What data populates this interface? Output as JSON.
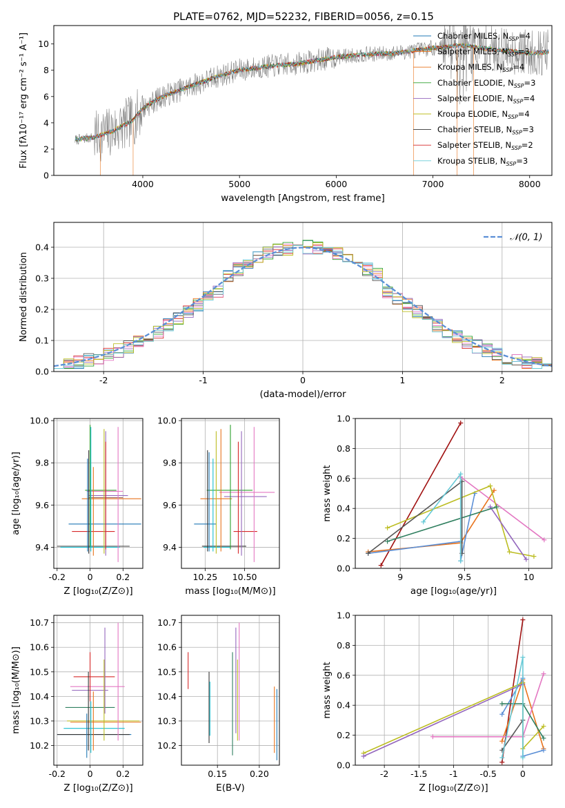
{
  "figure_title": "PLATE=0762, MJD=52232, FIBERID=0056, z=0.15",
  "colors": {
    "spectrum_data": "#808080",
    "normal_curve": "#5b8fd6",
    "grid": "#b0b0b0",
    "models": [
      "#1f77b4",
      "#e8731c",
      "#2ca02c",
      "#d62728",
      "#9467bd",
      "#8c564b",
      "#e377c2",
      "#bcbd22",
      "#17becf"
    ]
  },
  "chart_data": [
    {
      "id": "spectrum",
      "type": "line",
      "title": "PLATE=0762, MJD=52232, FIBERID=0056, z=0.15",
      "xlabel": "wavelength [Angstrom, rest frame]",
      "ylabel": "Flux [fλ10⁻¹⁷ erg cm⁻² s⁻¹ A⁻¹]",
      "xlim": [
        3080,
        8230
      ],
      "ylim": [
        0,
        11.4
      ],
      "xticks": [
        4000,
        5000,
        6000,
        7000,
        8000
      ],
      "yticks": [
        0,
        2,
        4,
        6,
        8,
        10
      ],
      "grid": false,
      "legend_position": "top-right",
      "continuum_anchor_points": [
        [
          3300,
          2.7
        ],
        [
          3500,
          2.9
        ],
        [
          3700,
          3.4
        ],
        [
          3900,
          4.2
        ],
        [
          4000,
          5.1
        ],
        [
          4200,
          6.0
        ],
        [
          4500,
          6.8
        ],
        [
          4800,
          7.6
        ],
        [
          5000,
          8.0
        ],
        [
          5300,
          8.3
        ],
        [
          5600,
          8.5
        ],
        [
          6000,
          9.0
        ],
        [
          6300,
          9.2
        ],
        [
          6600,
          9.3
        ],
        [
          7000,
          9.7
        ],
        [
          7300,
          9.9
        ],
        [
          7600,
          9.6
        ],
        [
          8000,
          9.3
        ],
        [
          8200,
          9.4
        ]
      ],
      "series": [
        {
          "name": "Chabrier MILES, N_SSP=4"
        },
        {
          "name": "Salpeter MILES, N_SSP=3"
        },
        {
          "name": "Kroupa MILES, N_SSP=4"
        },
        {
          "name": "Chabrier ELODIE, N_SSP=3"
        },
        {
          "name": "Salpeter ELODIE, N_SSP=4"
        },
        {
          "name": "Kroupa ELODIE, N_SSP=4"
        },
        {
          "name": "Chabrier STELIB, N_SSP=3"
        },
        {
          "name": "Salpeter STELIB, N_SSP=2"
        },
        {
          "name": "Kroupa STELIB, N_SSP=3"
        }
      ]
    },
    {
      "id": "residuals",
      "type": "line",
      "xlabel": "(data-model)/error",
      "ylabel": "Normed distribution",
      "xlim": [
        -2.5,
        2.5
      ],
      "ylim": [
        0,
        0.48
      ],
      "xticks": [
        -2,
        -1,
        0,
        1,
        2
      ],
      "yticks": [
        0.0,
        0.1,
        0.2,
        0.3,
        0.4
      ],
      "grid": true,
      "legend_position": "top-right",
      "legend_label": "𝒩(0, 1)",
      "bin_edges_start": -2.5,
      "bin_width": 0.1,
      "n_bins": 50
    },
    {
      "id": "age_vs_Z",
      "type": "scatter",
      "xlabel": "Z [log₁₀(Z/Z⊙)]",
      "ylabel": "age  [log₁₀(age/yr)]",
      "xlim": [
        -0.22,
        0.32
      ],
      "ylim": [
        9.3,
        10.01
      ],
      "xticks": [
        -0.2,
        0.0,
        0.2
      ],
      "yticks": [
        9.4,
        9.6,
        9.8,
        10.0
      ],
      "grid": true,
      "xerrbars": [
        {
          "y": 9.67,
          "x0": -0.03,
          "x1": 0.16,
          "color": "#2ca02c"
        },
        {
          "y": 9.665,
          "x0": -0.02,
          "x1": 0.2,
          "color": "#e377c2"
        },
        {
          "y": 9.645,
          "x0": -0.01,
          "x1": 0.23,
          "color": "#9467bd"
        },
        {
          "y": 9.635,
          "x0": -0.01,
          "x1": 0.2,
          "color": "#8c564b"
        },
        {
          "y": 9.63,
          "x0": -0.05,
          "x1": 0.31,
          "color": "#e8731c"
        },
        {
          "y": 9.51,
          "x0": -0.13,
          "x1": 0.31,
          "color": "#1f77b4"
        },
        {
          "y": 9.475,
          "x0": -0.11,
          "x1": 0.15,
          "color": "#d62728"
        },
        {
          "y": 9.405,
          "x0": -0.2,
          "x1": 0.24,
          "color": "#555555"
        },
        {
          "y": 9.4,
          "x0": -0.18,
          "x1": 0.18,
          "color": "#17becf"
        }
      ],
      "yerrbars": [
        {
          "x": -0.015,
          "y0": 9.38,
          "y1": 9.82,
          "color": "#1f77b4"
        },
        {
          "x": -0.008,
          "y0": 9.37,
          "y1": 9.86,
          "color": "#333333"
        },
        {
          "x": 0.0,
          "y0": 9.4,
          "y1": 9.98,
          "color": "#2ca02c"
        },
        {
          "x": 0.005,
          "y0": 9.38,
          "y1": 9.97,
          "color": "#17becf"
        },
        {
          "x": 0.02,
          "y0": 9.36,
          "y1": 9.78,
          "color": "#e8731c"
        },
        {
          "x": 0.085,
          "y0": 9.37,
          "y1": 9.96,
          "color": "#bcbd22"
        },
        {
          "x": 0.095,
          "y0": 9.36,
          "y1": 9.95,
          "color": "#9467bd"
        },
        {
          "x": 0.095,
          "y0": 9.39,
          "y1": 9.9,
          "color": "#d62728"
        },
        {
          "x": 0.17,
          "y0": 9.33,
          "y1": 9.97,
          "color": "#e377c2"
        }
      ]
    },
    {
      "id": "age_vs_mass",
      "type": "scatter",
      "xlabel": "mass [log₁₀(M/M⊙)]",
      "xlim": [
        10.1,
        10.72
      ],
      "ylim": [
        9.3,
        10.01
      ],
      "xticks": [
        10.25,
        10.5
      ],
      "xticklabels": [
        "10.25",
        "10.50"
      ],
      "yticks": [
        9.4,
        9.6,
        9.8,
        10.0
      ],
      "grid": true,
      "xerrbars": [
        {
          "y": 9.67,
          "x0": 10.26,
          "x1": 10.55,
          "color": "#2ca02c"
        },
        {
          "y": 9.66,
          "x0": 10.34,
          "x1": 10.69,
          "color": "#e377c2"
        },
        {
          "y": 9.64,
          "x0": 10.37,
          "x1": 10.64,
          "color": "#9467bd"
        },
        {
          "y": 9.63,
          "x0": 10.22,
          "x1": 10.42,
          "color": "#e8731c"
        },
        {
          "y": 9.51,
          "x0": 10.18,
          "x1": 10.32,
          "color": "#1f77b4"
        },
        {
          "y": 9.475,
          "x0": 10.43,
          "x1": 10.58,
          "color": "#d62728"
        },
        {
          "y": 9.405,
          "x0": 10.23,
          "x1": 10.51,
          "color": "#333333"
        },
        {
          "y": 9.4,
          "x0": 10.24,
          "x1": 10.41,
          "color": "#17becf"
        }
      ],
      "yerrbars": [
        {
          "x": 10.265,
          "y0": 9.38,
          "y1": 9.86,
          "color": "#333333"
        },
        {
          "x": 10.275,
          "y0": 9.38,
          "y1": 9.85,
          "color": "#1f77b4"
        },
        {
          "x": 10.3,
          "y0": 9.38,
          "y1": 9.82,
          "color": "#17becf"
        },
        {
          "x": 10.32,
          "y0": 9.37,
          "y1": 9.95,
          "color": "#bcbd22"
        },
        {
          "x": 10.35,
          "y0": 9.38,
          "y1": 9.96,
          "color": "#e8731c"
        },
        {
          "x": 10.41,
          "y0": 9.39,
          "y1": 9.98,
          "color": "#2ca02c"
        },
        {
          "x": 10.46,
          "y0": 9.37,
          "y1": 9.9,
          "color": "#d62728"
        },
        {
          "x": 10.48,
          "y0": 9.36,
          "y1": 9.95,
          "color": "#9467bd"
        },
        {
          "x": 10.56,
          "y0": 9.33,
          "y1": 9.97,
          "color": "#e377c2"
        }
      ]
    },
    {
      "id": "weight_vs_age",
      "type": "line",
      "xlabel": "age  [log₁₀(age/yr)]",
      "ylabel": "mass weight",
      "xlim": [
        8.65,
        10.18
      ],
      "ylim": [
        0,
        1.0
      ],
      "xticks": [
        9.0,
        9.5,
        10.0
      ],
      "yticks": [
        0.0,
        0.2,
        0.4,
        0.6,
        0.8,
        1.0
      ],
      "grid": true,
      "series": [
        {
          "color": "#a01010",
          "points": [
            [
              8.85,
              0.02
            ],
            [
              9.47,
              0.97
            ]
          ]
        },
        {
          "color": "#e8731c",
          "points": [
            [
              8.75,
              0.11
            ],
            [
              9.47,
              0.17
            ],
            [
              9.73,
              0.52
            ]
          ]
        },
        {
          "color": "#5b8fd6",
          "points": [
            [
              8.75,
              0.1
            ],
            [
              9.47,
              0.18
            ],
            [
              9.47,
              0.05
            ],
            [
              9.58,
              0.5
            ]
          ]
        },
        {
          "color": "#e377c2",
          "points": [
            [
              9.47,
              0.61
            ],
            [
              10.12,
              0.19
            ]
          ]
        },
        {
          "color": "#bcbd22",
          "points": [
            [
              8.9,
              0.27
            ],
            [
              9.7,
              0.55
            ],
            [
              9.85,
              0.11
            ],
            [
              10.04,
              0.08
            ]
          ]
        },
        {
          "color": "#9467bd",
          "points": [
            [
              9.7,
              0.41
            ],
            [
              9.98,
              0.06
            ]
          ]
        },
        {
          "color": "#2f7f5f",
          "points": [
            [
              8.9,
              0.18
            ],
            [
              9.75,
              0.41
            ]
          ]
        },
        {
          "color": "#555555",
          "points": [
            [
              8.75,
              0.1
            ],
            [
              9.48,
              0.58
            ],
            [
              9.48,
              0.1
            ]
          ]
        },
        {
          "color": "#66c9d6",
          "points": [
            [
              9.18,
              0.31
            ],
            [
              9.47,
              0.63
            ],
            [
              9.47,
              0.05
            ]
          ]
        }
      ]
    },
    {
      "id": "mass_vs_Z",
      "type": "scatter",
      "xlabel": "Z [log₁₀(Z/Z⊙)]",
      "ylabel": "mass [log₁₀(M/M⊙)]",
      "xlim": [
        -0.22,
        0.32
      ],
      "ylim": [
        10.12,
        10.73
      ],
      "xticks": [
        -0.2,
        0.0,
        0.2
      ],
      "yticks": [
        10.2,
        10.3,
        10.4,
        10.5,
        10.6,
        10.7
      ],
      "grid": true,
      "xerrbars": [
        {
          "y": 10.48,
          "x0": -0.1,
          "x1": 0.15,
          "color": "#d62728"
        },
        {
          "y": 10.44,
          "x0": -0.12,
          "x1": 0.21,
          "color": "#e377c2"
        },
        {
          "y": 10.425,
          "x0": -0.11,
          "x1": 0.11,
          "color": "#9467bd"
        },
        {
          "y": 10.355,
          "x0": -0.15,
          "x1": 0.15,
          "color": "#2f7f5f"
        },
        {
          "y": 10.3,
          "x0": -0.14,
          "x1": 0.3,
          "color": "#bcbd22"
        },
        {
          "y": 10.295,
          "x0": -0.12,
          "x1": 0.31,
          "color": "#e8731c"
        },
        {
          "y": 10.27,
          "x0": -0.16,
          "x1": 0.21,
          "color": "#17becf"
        },
        {
          "y": 10.245,
          "x0": -0.2,
          "x1": 0.25,
          "color": "#1f77b4"
        },
        {
          "y": 10.245,
          "x0": -0.2,
          "x1": 0.24,
          "color": "#333333"
        }
      ],
      "yerrbars": [
        {
          "x": -0.02,
          "y0": 10.15,
          "y1": 10.33,
          "color": "#1f77b4"
        },
        {
          "x": -0.01,
          "y0": 10.18,
          "y1": 10.5,
          "color": "#333333"
        },
        {
          "x": 0.0,
          "y0": 10.38,
          "y1": 10.58,
          "color": "#d62728"
        },
        {
          "x": 0.005,
          "y0": 10.17,
          "y1": 10.38,
          "color": "#17becf"
        },
        {
          "x": 0.02,
          "y0": 10.18,
          "y1": 10.42,
          "color": "#e8731c"
        },
        {
          "x": 0.085,
          "y0": 10.22,
          "y1": 10.55,
          "color": "#bcbd22"
        },
        {
          "x": 0.09,
          "y0": 10.33,
          "y1": 10.68,
          "color": "#9467bd"
        },
        {
          "x": 0.17,
          "y0": 10.22,
          "y1": 10.7,
          "color": "#e377c2"
        }
      ]
    },
    {
      "id": "mass_vs_ebv",
      "type": "scatter",
      "xlabel": "E(B-V)",
      "xlim": [
        0.107,
        0.224
      ],
      "ylim": [
        10.12,
        10.73
      ],
      "xticks": [
        0.15,
        0.2
      ],
      "xticklabels": [
        "0.15",
        "0.20"
      ],
      "yticks": [
        10.2,
        10.3,
        10.4,
        10.5,
        10.6,
        10.7
      ],
      "grid": true,
      "yerrbars": [
        {
          "x": 0.115,
          "y0": 10.43,
          "y1": 10.58,
          "color": "#d62728"
        },
        {
          "x": 0.14,
          "y0": 10.21,
          "y1": 10.5,
          "color": "#333333"
        },
        {
          "x": 0.141,
          "y0": 10.24,
          "y1": 10.46,
          "color": "#17becf"
        },
        {
          "x": 0.168,
          "y0": 10.16,
          "y1": 10.58,
          "color": "#2f7f5f"
        },
        {
          "x": 0.172,
          "y0": 10.25,
          "y1": 10.68,
          "color": "#9467bd"
        },
        {
          "x": 0.174,
          "y0": 10.22,
          "y1": 10.55,
          "color": "#bcbd22"
        },
        {
          "x": 0.176,
          "y0": 10.22,
          "y1": 10.7,
          "color": "#e377c2"
        },
        {
          "x": 0.218,
          "y0": 10.17,
          "y1": 10.44,
          "color": "#e8731c"
        },
        {
          "x": 0.221,
          "y0": 10.14,
          "y1": 10.43,
          "color": "#1f77b4"
        }
      ]
    },
    {
      "id": "weight_vs_Z",
      "type": "line",
      "xlabel": "Z [log₁₀(Z/Z⊙)]",
      "ylabel": "mass weight",
      "xlim": [
        -2.42,
        0.42
      ],
      "ylim": [
        0,
        1.0
      ],
      "xticks": [
        -2.0,
        -1.5,
        -1.0,
        -0.5,
        0.0
      ],
      "yticks": [
        0.0,
        0.2,
        0.4,
        0.6,
        0.8,
        1.0
      ],
      "grid": true,
      "series": [
        {
          "color": "#a01010",
          "points": [
            [
              -0.3,
              0.02
            ],
            [
              0.0,
              0.97
            ]
          ]
        },
        {
          "color": "#e8731c",
          "points": [
            [
              -0.3,
              0.16
            ],
            [
              0.0,
              0.57
            ],
            [
              0.3,
              0.11
            ]
          ]
        },
        {
          "color": "#5b8fd6",
          "points": [
            [
              -0.3,
              0.34
            ],
            [
              0.0,
              0.58
            ],
            [
              0.0,
              0.06
            ],
            [
              0.3,
              0.1
            ]
          ]
        },
        {
          "color": "#e377c2",
          "points": [
            [
              -1.3,
              0.19
            ],
            [
              0.0,
              0.19
            ],
            [
              0.3,
              0.61
            ]
          ]
        },
        {
          "color": "#bcbd22",
          "points": [
            [
              -2.3,
              0.08
            ],
            [
              0.0,
              0.55
            ],
            [
              0.0,
              0.11
            ],
            [
              0.3,
              0.26
            ]
          ]
        },
        {
          "color": "#9467bd",
          "points": [
            [
              -2.3,
              0.06
            ],
            [
              0.0,
              0.54
            ]
          ]
        },
        {
          "color": "#2f7f5f",
          "points": [
            [
              -0.3,
              0.41
            ],
            [
              0.0,
              0.41
            ],
            [
              0.3,
              0.18
            ]
          ]
        },
        {
          "color": "#555555",
          "points": [
            [
              -0.3,
              0.1
            ],
            [
              0.0,
              0.3
            ]
          ]
        },
        {
          "color": "#66c9d6",
          "points": [
            [
              -0.3,
              0.05
            ],
            [
              0.0,
              0.72
            ],
            [
              0.0,
              0.05
            ]
          ]
        }
      ]
    }
  ]
}
